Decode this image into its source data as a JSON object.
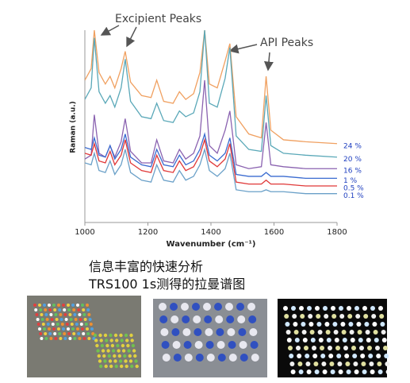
{
  "chart_data": {
    "type": "line",
    "annotations": [
      "Excipient Peaks",
      "API Peaks"
    ],
    "xlabel": "Wavenumber (cm⁻¹)",
    "ylabel": "Raman (a.u.)",
    "x": [
      1000,
      1020,
      1030,
      1045,
      1065,
      1080,
      1095,
      1115,
      1128,
      1145,
      1180,
      1210,
      1228,
      1250,
      1280,
      1300,
      1320,
      1345,
      1365,
      1380,
      1395,
      1420,
      1445,
      1460,
      1480,
      1520,
      1560,
      1575,
      1590,
      1630,
      1700,
      1800
    ],
    "xlim": [
      1000,
      1800
    ],
    "xticks": [
      1000,
      1200,
      1400,
      1600,
      1800
    ],
    "ylim": [
      0,
      100
    ],
    "series": [
      {
        "name": "24 %",
        "color": "#f0a060",
        "values": [
          74,
          80,
          100,
          78,
          72,
          76,
          70,
          80,
          89,
          73,
          66,
          65,
          74,
          63,
          62,
          68,
          64,
          67,
          78,
          100,
          72,
          70,
          84,
          93,
          55,
          46,
          44,
          76,
          48,
          43,
          42,
          41
        ]
      },
      {
        "name": "20 %",
        "color": "#5aa8b8",
        "values": [
          64,
          70,
          96,
          68,
          62,
          66,
          60,
          70,
          85,
          63,
          55,
          54,
          62,
          53,
          52,
          58,
          55,
          57,
          68,
          100,
          62,
          60,
          75,
          91,
          45,
          38,
          37,
          66,
          40,
          36,
          35,
          34
        ]
      },
      {
        "name": "16 %",
        "color": "#8a62b0",
        "values": [
          33,
          35,
          56,
          36,
          34,
          40,
          34,
          42,
          54,
          37,
          31,
          31,
          43,
          32,
          31,
          38,
          33,
          36,
          45,
          74,
          40,
          36,
          48,
          58,
          30,
          28,
          29,
          52,
          30,
          29,
          28,
          28
        ]
      },
      {
        "name": "1 %",
        "color": "#3a6bd0",
        "values": [
          39,
          38,
          44,
          35,
          34,
          40,
          33,
          38,
          46,
          34,
          30,
          29,
          38,
          30,
          29,
          35,
          30,
          32,
          38,
          46,
          35,
          32,
          36,
          44,
          25,
          24,
          24,
          26,
          24,
          24,
          23,
          23
        ]
      },
      {
        "name": "0.5 %",
        "color": "#e03838",
        "values": [
          36,
          35,
          41,
          32,
          31,
          37,
          30,
          35,
          43,
          31,
          27,
          26,
          35,
          27,
          26,
          32,
          27,
          29,
          35,
          43,
          32,
          29,
          33,
          41,
          21,
          20,
          20,
          22,
          20,
          20,
          19,
          19
        ]
      },
      {
        "name": "0.1 %",
        "color": "#6aa0c8",
        "values": [
          31,
          30,
          36,
          27,
          26,
          32,
          25,
          30,
          38,
          26,
          22,
          21,
          30,
          22,
          21,
          27,
          22,
          24,
          30,
          38,
          27,
          24,
          28,
          36,
          17,
          16,
          16,
          17,
          16,
          16,
          15,
          15
        ]
      }
    ]
  },
  "captions": [
    "信息丰富的快速分析",
    "TRS100 1s测得的拉曼谱图"
  ]
}
